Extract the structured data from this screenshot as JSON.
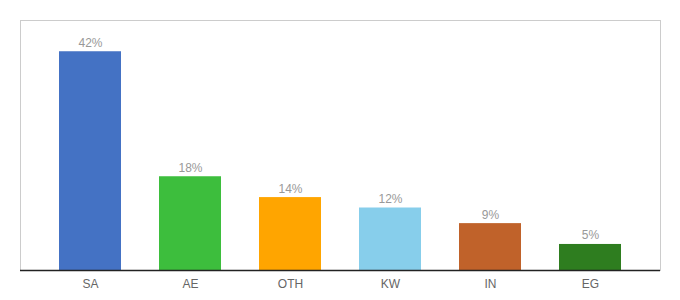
{
  "chart_data": {
    "type": "bar",
    "categories": [
      "SA",
      "AE",
      "OTH",
      "KW",
      "IN",
      "EG"
    ],
    "values": [
      42,
      18,
      14,
      12,
      9,
      5
    ],
    "value_labels": [
      "42%",
      "18%",
      "14%",
      "12%",
      "9%",
      "5%"
    ],
    "colors": [
      "#4472C4",
      "#3DBE3D",
      "#FFA500",
      "#87CEEB",
      "#C0622A",
      "#2E7D1F"
    ],
    "ylim": [
      0,
      48
    ],
    "data_labels": true,
    "tick_labels": "x",
    "grid": false
  }
}
